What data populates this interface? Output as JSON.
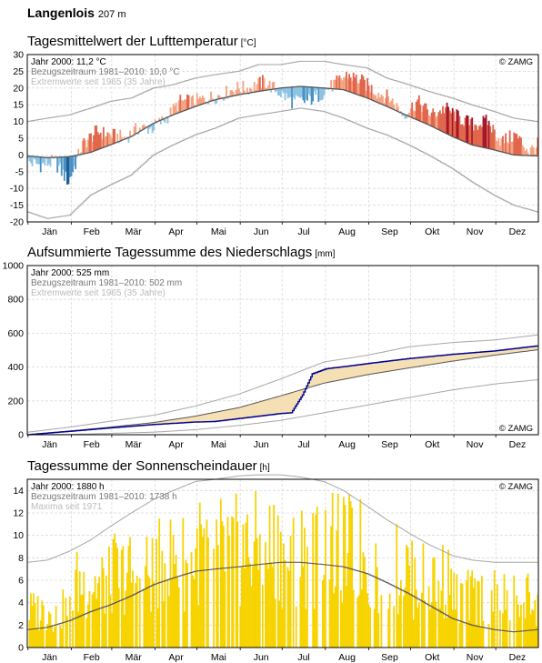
{
  "header": {
    "station": "Langenlois",
    "elevation": "207 m"
  },
  "copyright": "© ZAMG",
  "months": [
    "Jän",
    "Feb",
    "Mär",
    "Apr",
    "Mai",
    "Jun",
    "Jul",
    "Aug",
    "Sep",
    "Okt",
    "Nov",
    "Dez"
  ],
  "colors": {
    "warm_light": "#f4a484",
    "warm_mid": "#e0664c",
    "warm_dark": "#a3162a",
    "cold_light": "#8cc4e2",
    "cold_mid": "#4a90c2",
    "cold_dark": "#1d5f96",
    "normal_line": "#555555",
    "extreme_line": "#a6a6a6",
    "precip_line": "#00008f",
    "precip_deficit": "#f5dfb4",
    "precip_surplus": "#5d8fd4",
    "sun_bar": "#f7d300",
    "grid": "#d9d9d9"
  },
  "panels": {
    "temperature": {
      "title": "Tagesmittelwert der Lufttemperatur",
      "unit": "[°C]",
      "legend": [
        "Jahr 2000: 11,2 °C",
        "Bezugszeitraum 1981–2010: 10,0 °C",
        "Extremwerte seit 1965 (35 Jahre)"
      ]
    },
    "precipitation": {
      "title": "Aufsummierte Tagessumme des Niederschlags",
      "unit": "[mm]",
      "legend": [
        "Jahr 2000: 525 mm",
        "Bezugszeitraum 1981–2010: 502 mm",
        "Extremwerte seit 1965 (35 Jahre)"
      ]
    },
    "sunshine": {
      "title": "Tagessumme der Sonnenscheindauer",
      "unit": "[h]",
      "legend": [
        "Jahr 2000: 1880 h",
        "Bezugszeitraum 1981–2010: 1738 h",
        "Maxima seit 1971"
      ]
    }
  },
  "chart_data": [
    {
      "type": "area",
      "id": "temperature",
      "x_unit": "day of year 2000",
      "ylim": [
        -20,
        30
      ],
      "yticks": [
        -20,
        -15,
        -10,
        -5,
        0,
        5,
        10,
        15,
        20,
        25,
        30
      ],
      "grid": true,
      "series": [
        {
          "name": "Jahr 2000",
          "x": [
            1,
            10,
            20,
            30,
            40,
            50,
            60,
            70,
            80,
            90,
            100,
            110,
            120,
            130,
            140,
            150,
            160,
            170,
            180,
            190,
            200,
            210,
            220,
            230,
            240,
            250,
            260,
            270,
            280,
            290,
            300,
            310,
            320,
            330,
            340,
            350,
            360,
            366
          ],
          "values": [
            -2,
            -3,
            -2,
            -8,
            3,
            7,
            6,
            5,
            8,
            8,
            11,
            16,
            16,
            17,
            18,
            20,
            20,
            22,
            19,
            16,
            16,
            18,
            21,
            24,
            22,
            19,
            17,
            12,
            16,
            12,
            14,
            11,
            9,
            10,
            4,
            6,
            1,
            3
          ]
        },
        {
          "name": "Bezugszeitraum 1981–2010",
          "x": [
            1,
            15,
            31,
            46,
            60,
            75,
            91,
            105,
            121,
            135,
            152,
            166,
            182,
            196,
            213,
            227,
            244,
            258,
            274,
            288,
            305,
            319,
            335,
            349,
            366
          ],
          "values": [
            -0.3,
            -0.8,
            -0.5,
            0.8,
            3.0,
            5.5,
            9.5,
            12.0,
            14.5,
            16.5,
            18.0,
            19.0,
            20.0,
            20.5,
            20.0,
            19.5,
            17.0,
            14.5,
            11.5,
            9.0,
            5.5,
            3.0,
            1.5,
            0.0,
            -0.3
          ]
        },
        {
          "name": "Extremwerte seit 1965 (max)",
          "x": [
            1,
            15,
            31,
            46,
            60,
            75,
            91,
            105,
            121,
            135,
            152,
            166,
            182,
            196,
            213,
            227,
            244,
            258,
            274,
            288,
            305,
            319,
            335,
            349,
            366
          ],
          "values": [
            10,
            11,
            12,
            14,
            16,
            17,
            20,
            21,
            23,
            24,
            25,
            27,
            27,
            28,
            28,
            27,
            26,
            23,
            21,
            19,
            17,
            15,
            13,
            11,
            10
          ]
        },
        {
          "name": "Extremwerte seit 1965 (min)",
          "x": [
            1,
            15,
            31,
            46,
            60,
            75,
            91,
            105,
            121,
            135,
            152,
            166,
            182,
            196,
            213,
            227,
            244,
            258,
            274,
            288,
            305,
            319,
            335,
            349,
            366
          ],
          "values": [
            -17,
            -19,
            -18,
            -12,
            -9,
            -6,
            0,
            3,
            6,
            8,
            11,
            12,
            13,
            14,
            13,
            11,
            8,
            6,
            3,
            0,
            -4,
            -8,
            -12,
            -15,
            -17
          ]
        }
      ]
    },
    {
      "type": "line",
      "id": "precipitation",
      "x_unit": "day of year 2000",
      "ylim": [
        0,
        1000
      ],
      "yticks": [
        0,
        200,
        400,
        600,
        800,
        1000
      ],
      "grid": true,
      "series": [
        {
          "name": "Jahr 2000",
          "x": [
            1,
            31,
            60,
            91,
            121,
            135,
            152,
            182,
            190,
            198,
            205,
            215,
            230,
            244,
            274,
            305,
            335,
            366
          ],
          "values": [
            0,
            20,
            40,
            60,
            75,
            78,
            95,
            125,
            130,
            235,
            360,
            390,
            405,
            420,
            450,
            475,
            495,
            525
          ]
        },
        {
          "name": "Bezugszeitraum 1981–2010",
          "x": [
            1,
            31,
            60,
            91,
            121,
            152,
            182,
            213,
            244,
            274,
            305,
            335,
            366
          ],
          "values": [
            0,
            22,
            45,
            72,
            110,
            160,
            230,
            305,
            355,
            395,
            435,
            470,
            502
          ]
        },
        {
          "name": "Extremwerte seit 1965 (max)",
          "x": [
            1,
            31,
            60,
            91,
            121,
            152,
            182,
            213,
            244,
            274,
            305,
            335,
            366
          ],
          "values": [
            15,
            45,
            80,
            115,
            170,
            240,
            330,
            430,
            470,
            520,
            545,
            560,
            590
          ]
        },
        {
          "name": "Extremwerte seit 1965 (min)",
          "x": [
            1,
            31,
            60,
            91,
            121,
            152,
            182,
            213,
            244,
            274,
            305,
            335,
            366
          ],
          "values": [
            0,
            2,
            8,
            15,
            30,
            55,
            85,
            130,
            175,
            220,
            265,
            300,
            325
          ]
        }
      ]
    },
    {
      "type": "bar",
      "id": "sunshine",
      "x_unit": "day of year 2000",
      "ylim": [
        0,
        15
      ],
      "yticks": [
        0,
        2,
        4,
        6,
        8,
        10,
        12,
        14
      ],
      "grid": true,
      "series": [
        {
          "name": "Jahr 2000 (monthly daily maximum)",
          "categories": [
            "Jän",
            "Feb",
            "Mär",
            "Apr",
            "Mai",
            "Jun",
            "Jul",
            "Aug",
            "Sep",
            "Okt",
            "Nov",
            "Dez"
          ],
          "values": [
            5.2,
            9.0,
            10.5,
            12.2,
            13.8,
            14.0,
            13.2,
            13.8,
            11.2,
            9.6,
            7.0,
            7.0
          ]
        },
        {
          "name": "Bezugszeitraum 1981–2010",
          "x": [
            1,
            15,
            31,
            46,
            60,
            75,
            91,
            105,
            121,
            135,
            152,
            166,
            182,
            196,
            213,
            227,
            244,
            258,
            274,
            288,
            305,
            319,
            335,
            349,
            366
          ],
          "values": [
            1.6,
            1.8,
            2.4,
            3.2,
            3.8,
            4.6,
            5.6,
            6.2,
            6.8,
            7.0,
            7.2,
            7.4,
            7.6,
            7.6,
            7.4,
            7.2,
            6.6,
            5.8,
            4.8,
            3.8,
            2.6,
            2.0,
            1.6,
            1.4,
            1.6
          ]
        },
        {
          "name": "Maxima seit 1971",
          "x": [
            1,
            15,
            31,
            46,
            60,
            75,
            91,
            105,
            121,
            135,
            152,
            166,
            182,
            196,
            213,
            227,
            244,
            258,
            274,
            288,
            305,
            319,
            335,
            349,
            366
          ],
          "values": [
            7.6,
            7.8,
            8.6,
            9.6,
            10.8,
            12.0,
            13.2,
            14.0,
            14.8,
            15.0,
            15.3,
            15.4,
            15.4,
            15.2,
            14.8,
            14.0,
            12.6,
            11.4,
            10.2,
            9.2,
            8.2,
            7.8,
            7.6,
            7.6,
            7.6
          ]
        }
      ]
    }
  ]
}
